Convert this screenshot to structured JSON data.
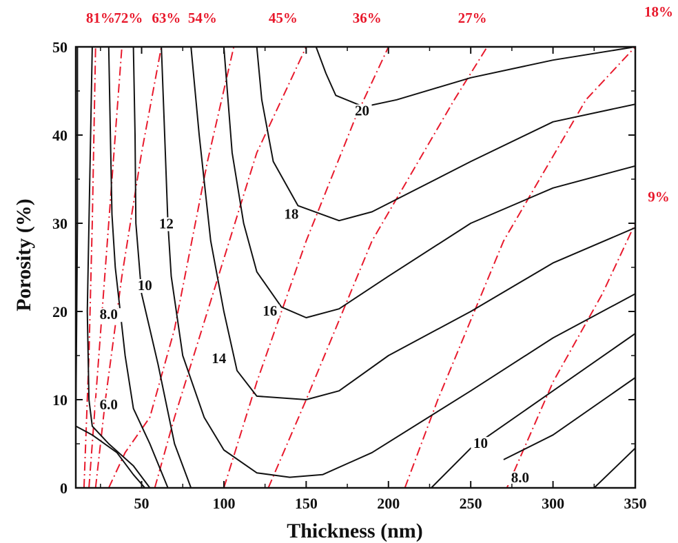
{
  "chart_data": {
    "type": "contour",
    "xlabel": "Thickness (nm)",
    "ylabel": "Porosity (%)",
    "xlim": [
      10,
      350
    ],
    "ylim": [
      0,
      50
    ],
    "xticks": [
      50,
      100,
      150,
      200,
      250,
      300,
      350
    ],
    "yticks": [
      0,
      10,
      20,
      30,
      40,
      50
    ],
    "grid": false,
    "line_color": "#111111",
    "dash_color": "#e8192c",
    "solid_contours": [
      {
        "label": "20",
        "label_at": [
          184,
          42.3
        ],
        "points": [
          [
            156,
            50
          ],
          [
            162,
            47
          ],
          [
            168,
            44.5
          ],
          [
            185,
            43.2
          ],
          [
            205,
            44
          ],
          [
            250,
            46.5
          ],
          [
            300,
            48.5
          ],
          [
            350,
            50
          ]
        ]
      },
      {
        "label": "18",
        "label_at": [
          141,
          30.6
        ],
        "points": [
          [
            120,
            50
          ],
          [
            123,
            44
          ],
          [
            130,
            37
          ],
          [
            145,
            32
          ],
          [
            170,
            30.3
          ],
          [
            190,
            31.3
          ],
          [
            250,
            37
          ],
          [
            300,
            41.5
          ],
          [
            350,
            43.5
          ]
        ]
      },
      {
        "label": "16",
        "label_at": [
          128,
          19.6
        ],
        "points": [
          [
            100,
            50
          ],
          [
            105,
            38
          ],
          [
            112,
            30
          ],
          [
            120,
            24.5
          ],
          [
            135,
            20.5
          ],
          [
            150,
            19.3
          ],
          [
            170,
            20.3
          ],
          [
            200,
            24
          ],
          [
            250,
            30
          ],
          [
            300,
            34
          ],
          [
            350,
            36.5
          ]
        ]
      },
      {
        "label": "14",
        "label_at": [
          97,
          14.2
        ],
        "points": [
          [
            80,
            50
          ],
          [
            85,
            40
          ],
          [
            92,
            28
          ],
          [
            100,
            20
          ],
          [
            108,
            13.3
          ],
          [
            120,
            10.4
          ],
          [
            150,
            10
          ],
          [
            170,
            11
          ],
          [
            200,
            15
          ],
          [
            250,
            20
          ],
          [
            300,
            25.5
          ],
          [
            350,
            29.5
          ]
        ]
      },
      {
        "label": "12",
        "label_at": [
          65,
          29.5
        ],
        "points": [
          [
            62,
            50
          ],
          [
            64,
            40
          ],
          [
            66,
            30
          ],
          [
            68,
            24
          ],
          [
            75,
            15
          ],
          [
            88,
            8
          ],
          [
            100,
            4.3
          ],
          [
            120,
            1.7
          ],
          [
            140,
            1.2
          ],
          [
            160,
            1.5
          ],
          [
            190,
            4
          ],
          [
            250,
            11
          ],
          [
            300,
            17
          ],
          [
            350,
            22
          ]
        ]
      },
      {
        "label": "10",
        "label_at": [
          52,
          22.5
        ],
        "points": [
          [
            45,
            50
          ],
          [
            46,
            40
          ],
          [
            46.5,
            30
          ],
          [
            50,
            22
          ],
          [
            55,
            18
          ],
          [
            60,
            14
          ],
          [
            70,
            5
          ],
          [
            80,
            0
          ]
        ]
      },
      {
        "label": "8.0",
        "label_at": [
          30,
          19.2
        ],
        "points": [
          [
            30,
            50
          ],
          [
            31,
            40
          ],
          [
            32,
            31
          ],
          [
            34,
            25
          ],
          [
            37,
            20
          ],
          [
            40,
            15
          ],
          [
            45,
            9
          ],
          [
            55,
            5
          ],
          [
            66,
            0
          ]
        ]
      },
      {
        "label": "6.0",
        "label_at": [
          30,
          9.0
        ],
        "points": [
          [
            20,
            50
          ],
          [
            19,
            40
          ],
          [
            18,
            30
          ],
          [
            17,
            20
          ],
          [
            18,
            10
          ],
          [
            20,
            7
          ],
          [
            30,
            5
          ],
          [
            45,
            2.5
          ],
          [
            55,
            0
          ]
        ]
      },
      {
        "label": "",
        "label_at": null,
        "points": [
          [
            11,
            50
          ],
          [
            11,
            30
          ],
          [
            10,
            7
          ]
        ]
      },
      {
        "label": "",
        "label_at": null,
        "points": [
          [
            10,
            7
          ],
          [
            20,
            6
          ],
          [
            35,
            4
          ],
          [
            45,
            1.5
          ],
          [
            52,
            0
          ]
        ]
      },
      {
        "label": "10",
        "label_at": [
          256,
          4.6
        ],
        "points": [
          [
            226,
            0
          ],
          [
            250,
            4.5
          ],
          [
            300,
            11
          ],
          [
            350,
            17.5
          ]
        ]
      },
      {
        "label": "8.0",
        "label_at": [
          280,
          0.7
        ],
        "points": [
          [
            270,
            3.2
          ],
          [
            300,
            6
          ],
          [
            350,
            12.5
          ]
        ]
      },
      {
        "label": "",
        "label_at": null,
        "points": [
          [
            325,
            0
          ],
          [
            350,
            4.5
          ]
        ]
      }
    ],
    "dashed_contours": [
      {
        "label": "81%",
        "label_pos": "top",
        "label_x": 25,
        "points": [
          [
            15,
            0
          ],
          [
            18,
            15
          ],
          [
            20,
            30
          ],
          [
            22,
            50
          ]
        ]
      },
      {
        "label": "72%",
        "label_pos": "top",
        "label_x": 42,
        "points": [
          [
            18,
            0
          ],
          [
            22,
            10
          ],
          [
            28,
            25
          ],
          [
            34,
            40
          ],
          [
            38,
            50
          ]
        ]
      },
      {
        "label": "63%",
        "label_pos": "top",
        "label_x": 65,
        "points": [
          [
            22,
            0
          ],
          [
            28,
            10
          ],
          [
            38,
            24
          ],
          [
            50,
            38
          ],
          [
            62,
            50
          ]
        ]
      },
      {
        "label": "54%",
        "label_pos": "top",
        "label_x": 87,
        "points": [
          [
            30,
            0
          ],
          [
            40,
            4
          ],
          [
            55,
            8
          ],
          [
            70,
            18
          ],
          [
            90,
            37
          ],
          [
            106,
            50
          ]
        ]
      },
      {
        "label": "45%",
        "label_pos": "top",
        "label_x": 136,
        "points": [
          [
            58,
            0
          ],
          [
            70,
            8
          ],
          [
            90,
            20
          ],
          [
            120,
            38
          ],
          [
            150,
            50
          ]
        ]
      },
      {
        "label": "36%",
        "label_pos": "top",
        "label_x": 187,
        "points": [
          [
            100,
            0
          ],
          [
            120,
            12
          ],
          [
            150,
            28
          ],
          [
            180,
            42
          ],
          [
            200,
            50
          ]
        ]
      },
      {
        "label": "27%",
        "label_pos": "top",
        "label_x": 251,
        "points": [
          [
            127,
            0
          ],
          [
            150,
            10
          ],
          [
            190,
            28
          ],
          [
            240,
            44
          ],
          [
            260,
            50
          ]
        ]
      },
      {
        "label": "18%",
        "label_pos": "right",
        "label_y": 54,
        "points": [
          [
            210,
            0
          ],
          [
            230,
            10
          ],
          [
            270,
            28
          ],
          [
            320,
            44
          ],
          [
            350,
            50
          ]
        ]
      },
      {
        "label": "9%",
        "label_pos": "right",
        "label_y": 33,
        "points": [
          [
            272,
            0
          ],
          [
            300,
            12
          ],
          [
            330,
            22
          ],
          [
            350,
            30
          ]
        ]
      }
    ]
  }
}
